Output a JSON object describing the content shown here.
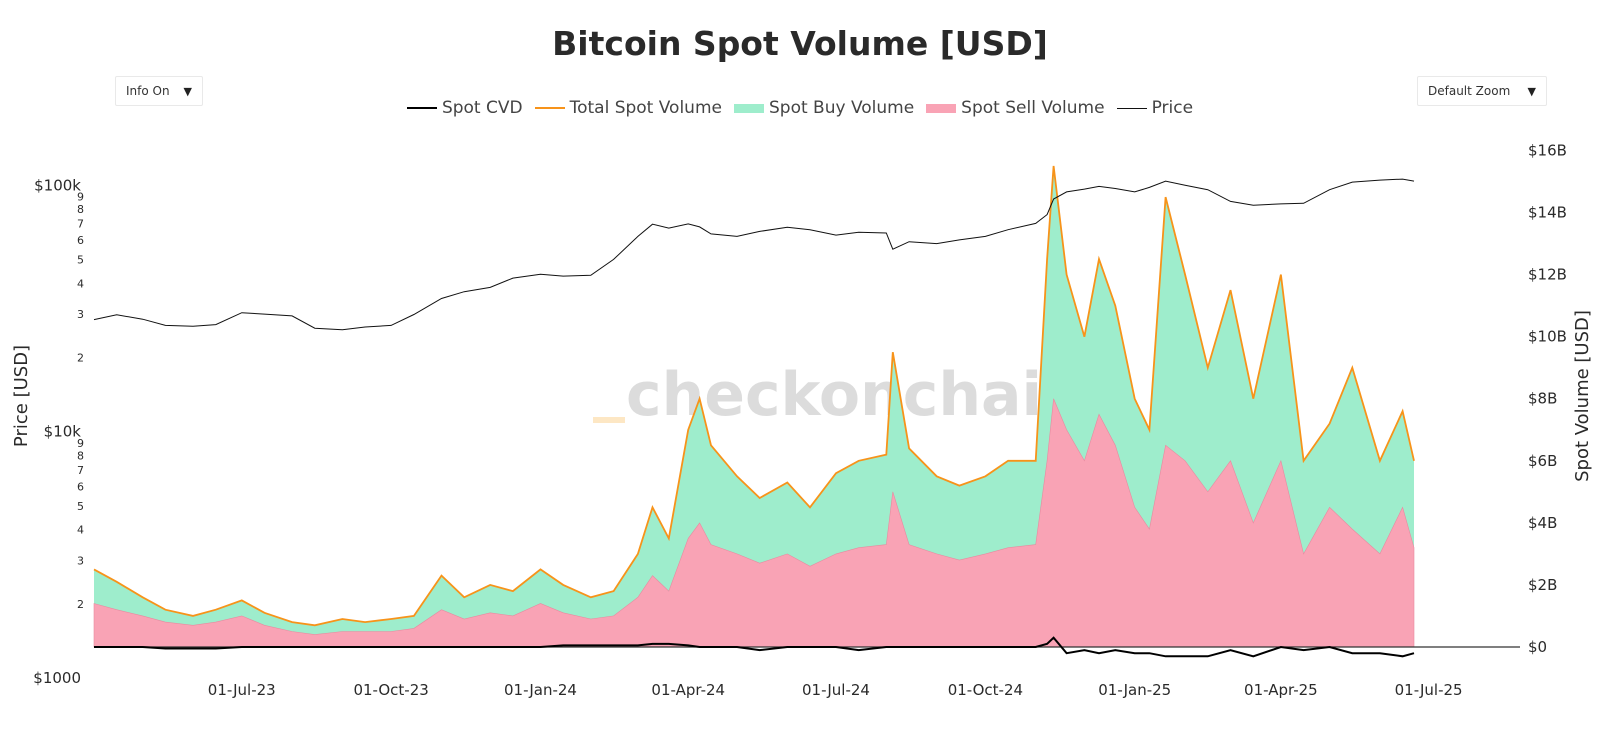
{
  "title": "Bitcoin Spot Volume [USD]",
  "controls": {
    "info_label": "Info On",
    "zoom_label": "Default Zoom",
    "dropdown_arrow": "▼"
  },
  "watermark": "checkonchain",
  "colors": {
    "cvd": "#000000",
    "total": "#f7931a",
    "buy": "#9eedcc",
    "sell": "#f9a3b5",
    "price": "#111111"
  },
  "chart_data": {
    "type": "area",
    "title": "Bitcoin Spot Volume [USD]",
    "legend": [
      "Spot CVD",
      "Total Spot Volume",
      "Spot Buy Volume",
      "Spot Sell Volume",
      "Price"
    ],
    "legend_position": "top-center",
    "grid": false,
    "x_range": [
      "2023-04-01",
      "2025-06-30"
    ],
    "x_ticks": [
      "01-Jul-23",
      "01-Oct-23",
      "01-Jan-24",
      "01-Apr-24",
      "01-Jul-24",
      "01-Oct-24",
      "01-Jan-25",
      "01-Apr-25",
      "01-Jul-25"
    ],
    "y_left": {
      "label": "Price [USD]",
      "scale": "log",
      "range": [
        1000,
        160000
      ],
      "major_ticks": [
        "$1000",
        "$10k",
        "$100k"
      ],
      "minor_ticks": [
        "2",
        "3",
        "4",
        "5",
        "6",
        "7",
        "8",
        "9"
      ]
    },
    "y_right": {
      "label": "Spot Volume [USD]",
      "range": [
        -1.0,
        16.5
      ],
      "unit": "B",
      "ticks": [
        "$0",
        "$2B",
        "$4B",
        "$6B",
        "$8B",
        "$10B",
        "$12B",
        "$14B",
        "$16B"
      ]
    },
    "series": {
      "dates": [
        "2023-04-01",
        "2023-04-15",
        "2023-05-01",
        "2023-05-15",
        "2023-06-01",
        "2023-06-15",
        "2023-07-01",
        "2023-07-15",
        "2023-08-01",
        "2023-08-15",
        "2023-09-01",
        "2023-09-15",
        "2023-10-01",
        "2023-10-15",
        "2023-11-01",
        "2023-11-15",
        "2023-12-01",
        "2023-12-15",
        "2024-01-01",
        "2024-01-15",
        "2024-02-01",
        "2024-02-15",
        "2024-03-01",
        "2024-03-10",
        "2024-03-20",
        "2024-04-01",
        "2024-04-08",
        "2024-04-15",
        "2024-05-01",
        "2024-05-15",
        "2024-06-01",
        "2024-06-15",
        "2024-07-01",
        "2024-07-15",
        "2024-08-01",
        "2024-08-05",
        "2024-08-15",
        "2024-09-01",
        "2024-09-15",
        "2024-10-01",
        "2024-10-15",
        "2024-11-01",
        "2024-11-08",
        "2024-11-12",
        "2024-11-20",
        "2024-12-01",
        "2024-12-10",
        "2024-12-20",
        "2025-01-01",
        "2025-01-10",
        "2025-01-20",
        "2025-02-01",
        "2025-02-15",
        "2025-03-01",
        "2025-03-15",
        "2025-04-01",
        "2025-04-15",
        "2025-05-01",
        "2025-05-15",
        "2025-06-01",
        "2025-06-15",
        "2025-06-22"
      ],
      "price": [
        28500,
        29800,
        28600,
        27000,
        26800,
        27200,
        30400,
        30000,
        29500,
        26300,
        25900,
        26600,
        27000,
        29900,
        34700,
        37000,
        38500,
        42000,
        43500,
        42800,
        43100,
        50000,
        62000,
        69500,
        67000,
        69700,
        67800,
        63500,
        62000,
        65000,
        67500,
        66000,
        62800,
        64500,
        64000,
        55000,
        59000,
        58000,
        60000,
        62000,
        66000,
        70000,
        76000,
        88000,
        94000,
        96500,
        99000,
        97000,
        94000,
        98000,
        104000,
        100000,
        96000,
        86000,
        83000,
        84000,
        84500,
        96000,
        103000,
        105000,
        106000,
        104000
      ],
      "total_volume_b": [
        2.5,
        2.1,
        1.6,
        1.2,
        1.0,
        1.2,
        1.5,
        1.1,
        0.8,
        0.7,
        0.9,
        0.8,
        0.9,
        1.0,
        2.3,
        1.6,
        2.0,
        1.8,
        2.5,
        2.0,
        1.6,
        1.8,
        3.0,
        4.5,
        3.5,
        7.0,
        8.0,
        6.5,
        5.5,
        4.8,
        5.3,
        4.5,
        5.6,
        6.0,
        6.2,
        9.5,
        6.4,
        5.5,
        5.2,
        5.5,
        6.0,
        6.0,
        12.5,
        15.5,
        12.0,
        10.0,
        12.5,
        11.0,
        8.0,
        7.0,
        14.5,
        12.0,
        9.0,
        11.5,
        8.0,
        12.0,
        6.0,
        7.2,
        9.0,
        6.0,
        7.6,
        6.0
      ],
      "sell_volume_b": [
        1.4,
        1.2,
        1.0,
        0.8,
        0.7,
        0.8,
        1.0,
        0.7,
        0.5,
        0.4,
        0.5,
        0.5,
        0.5,
        0.6,
        1.2,
        0.9,
        1.1,
        1.0,
        1.4,
        1.1,
        0.9,
        1.0,
        1.6,
        2.3,
        1.8,
        3.5,
        4.0,
        3.3,
        3.0,
        2.7,
        3.0,
        2.6,
        3.0,
        3.2,
        3.3,
        5.0,
        3.3,
        3.0,
        2.8,
        3.0,
        3.2,
        3.3,
        6.0,
        8.0,
        7.0,
        6.0,
        7.5,
        6.5,
        4.5,
        3.8,
        6.5,
        6.0,
        5.0,
        6.0,
        4.0,
        6.0,
        3.0,
        4.5,
        3.8,
        3.0,
        4.5,
        3.2
      ],
      "cvd_b": [
        0,
        0,
        0,
        -0.05,
        -0.05,
        -0.05,
        0,
        0,
        0,
        0,
        0,
        0,
        0,
        0,
        0,
        0,
        0,
        0,
        0,
        0.05,
        0.05,
        0.05,
        0.05,
        0.1,
        0.1,
        0.05,
        0,
        0,
        0,
        -0.1,
        0,
        0,
        0,
        -0.1,
        0,
        0,
        0,
        0,
        0,
        0,
        0,
        0,
        0.1,
        0.3,
        -0.2,
        -0.1,
        -0.2,
        -0.1,
        -0.2,
        -0.2,
        -0.3,
        -0.3,
        -0.3,
        -0.1,
        -0.3,
        0,
        -0.1,
        0,
        -0.2,
        -0.2,
        -0.3,
        -0.2
      ]
    }
  }
}
